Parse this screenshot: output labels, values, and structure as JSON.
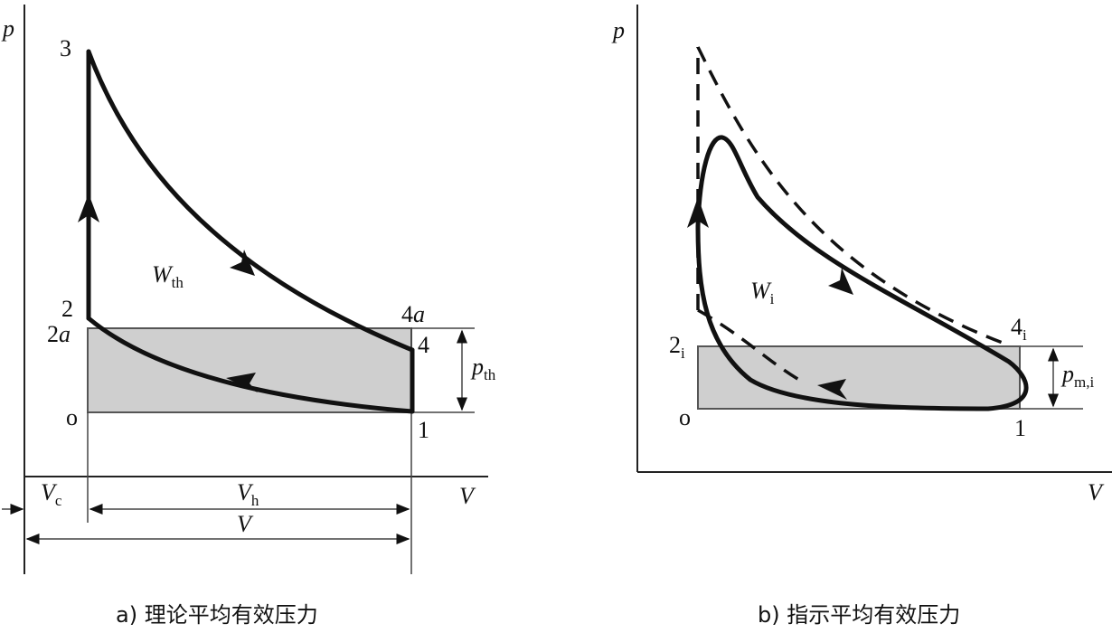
{
  "diagram_a": {
    "axis_p": "p",
    "axis_V": "V",
    "point_3": "3",
    "point_2": "2",
    "point_2a_num": "2",
    "point_2a_let": "a",
    "point_4a_num": "4",
    "point_4a_let": "a",
    "point_4": "4",
    "point_1": "1",
    "point_o": "o",
    "work_main": "W",
    "work_sub": "th",
    "pressure_main": "p",
    "pressure_sub": "th",
    "vc_main": "V",
    "vc_sub": "c",
    "vh_main": "V",
    "vh_sub": "h",
    "v_total": "V",
    "caption": "a) 理论平均有效压力"
  },
  "diagram_b": {
    "axis_p": "p",
    "axis_V": "V",
    "point_2i_num": "2",
    "point_2i_sub": "i",
    "point_4i_num": "4",
    "point_4i_sub": "i",
    "point_1": "1",
    "point_o": "o",
    "work_main": "W",
    "work_sub": "i",
    "pressure_main": "p",
    "pressure_sub": "m,i",
    "caption": "b) 指示平均有效压力"
  }
}
